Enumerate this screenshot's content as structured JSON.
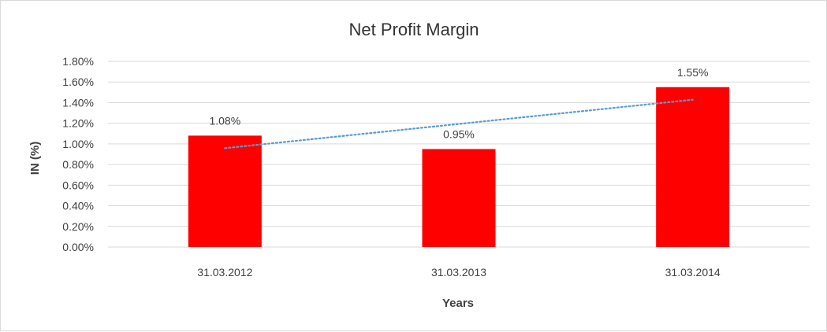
{
  "chart_data": {
    "type": "bar",
    "title": "Net Profit Margin",
    "xlabel": "Years",
    "ylabel": "IN (%)",
    "categories": [
      "31.03.2012",
      "31.03.2013",
      "31.03.2014"
    ],
    "values": [
      1.08,
      0.95,
      1.55
    ],
    "data_labels": [
      "1.08%",
      "0.95%",
      "1.55%"
    ],
    "ylim": [
      0,
      1.8
    ],
    "yticks": [
      0,
      0.2,
      0.4,
      0.6,
      0.8,
      1.0,
      1.2,
      1.4,
      1.6,
      1.8
    ],
    "ytick_labels": [
      "0.00%",
      "0.20%",
      "0.40%",
      "0.60%",
      "0.80%",
      "1.00%",
      "1.20%",
      "1.40%",
      "1.60%",
      "1.80%"
    ],
    "grid": true,
    "legend": "none",
    "trendline": {
      "type": "linear",
      "style": "dotted"
    },
    "colors": {
      "bar": "#ff0000",
      "trendline": "#5b9bd5",
      "grid": "#d9d9d9"
    }
  }
}
